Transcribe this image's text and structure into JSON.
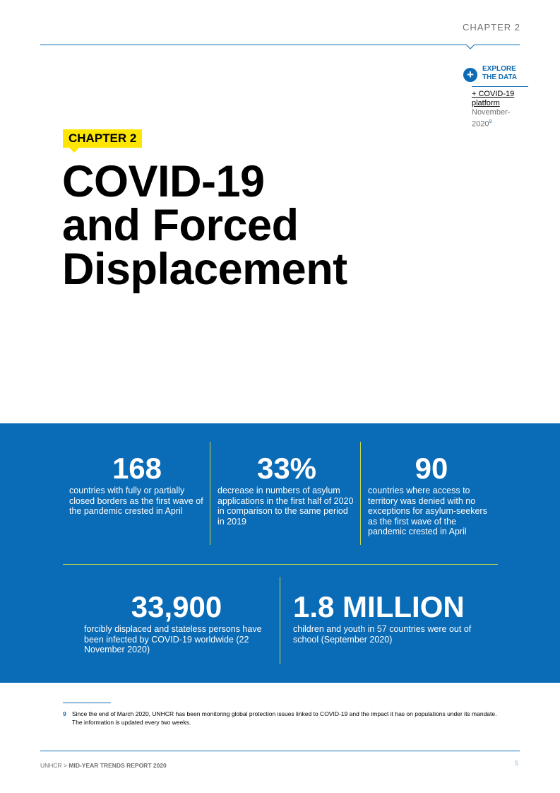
{
  "header": {
    "chapter_label": "CHAPTER 2"
  },
  "explore": {
    "button_icon": "plus-icon",
    "label": "EXPLORE THE DATA",
    "link_text": "+ COVID-19 platform",
    "date_text": "November-2020",
    "footnote_ref": "9"
  },
  "chapter_tag": "CHAPTER 2",
  "title": {
    "line1": "COVID-19",
    "line2": "and Forced",
    "line3": "Displacement"
  },
  "colors": {
    "band_blue": "#0a6bb6",
    "accent_yellow": "#ffe600",
    "divider_green": "#c8d64a"
  },
  "stats": [
    {
      "value": "168",
      "description": "countries with fully or partially closed borders as the first wave of the pandemic crested in April"
    },
    {
      "value": "33%",
      "description": "decrease in numbers of asylum applications in the first half of 2020 in comparison to the same period in 2019"
    },
    {
      "value": "90",
      "description": "countries where access to territory was denied with no exceptions for asylum-seekers as the first wave of the pandemic crested in April"
    },
    {
      "value": "33,900",
      "description": "forcibly displaced and stateless persons have been infected by COVID-19 worldwide (22 November 2020)"
    },
    {
      "value": "1.8 MILLION",
      "description": "children and youth in 57 countries were out of school (September 2020)"
    }
  ],
  "footnote": {
    "number": "9",
    "text": "Since the end of March 2020, UNHCR has been monitoring global protection issues linked to COVID-19 and the impact it has on populations under its mandate. The information is updated every two weeks."
  },
  "footer": {
    "org": "UNHCR",
    "separator": " > ",
    "report": "MID-YEAR TRENDS REPORT 2020",
    "page_number": "5"
  }
}
